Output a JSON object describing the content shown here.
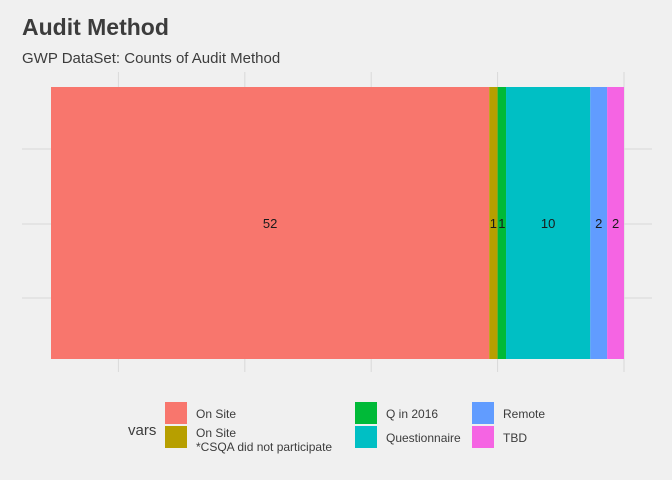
{
  "title": "Audit Method",
  "subtitle": "GWP DataSet: Counts of Audit Method",
  "chart_data": {
    "type": "bar",
    "stacked": true,
    "orientation": "horizontal",
    "categories": [
      ""
    ],
    "series": [
      {
        "name": "On Site",
        "values": [
          52
        ],
        "color": "#F8766D"
      },
      {
        "name": "On Site\n*CSQA did not participate",
        "values": [
          1
        ],
        "color": "#B79F00"
      },
      {
        "name": "Q in 2016",
        "values": [
          1
        ],
        "color": "#00BA38"
      },
      {
        "name": "Questionnaire",
        "values": [
          10
        ],
        "color": "#00BFC4"
      },
      {
        "name": "Remote",
        "values": [
          2
        ],
        "color": "#619CFF"
      },
      {
        "name": "TBD",
        "values": [
          2
        ],
        "color": "#F564E3"
      }
    ],
    "data_labels": [
      "52",
      "1",
      "1",
      "10",
      "2",
      "2"
    ],
    "legend_title": "vars",
    "legend_position": "bottom",
    "grid": true,
    "xlabel": "",
    "ylabel": ""
  }
}
